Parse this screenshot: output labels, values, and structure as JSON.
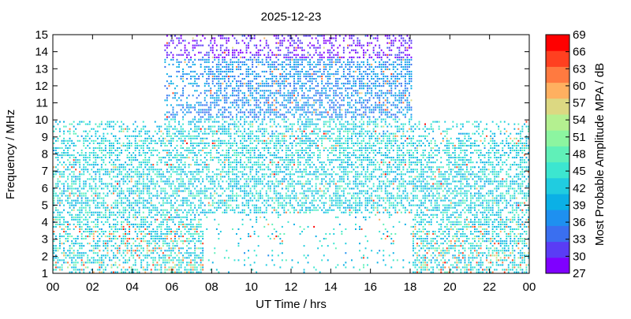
{
  "chart_data": {
    "type": "heatmap",
    "title": "2025-12-23",
    "xlabel": "UT Time / hrs",
    "ylabel": "Frequency / MHz",
    "xlim": [
      0,
      24
    ],
    "ylim": [
      1,
      15
    ],
    "x_ticks": [
      "00",
      "02",
      "04",
      "06",
      "08",
      "10",
      "12",
      "14",
      "16",
      "18",
      "20",
      "22",
      "00"
    ],
    "y_ticks": [
      "1",
      "2",
      "3",
      "4",
      "5",
      "6",
      "7",
      "8",
      "9",
      "10",
      "11",
      "12",
      "13",
      "14",
      "15"
    ],
    "colorbar": {
      "label": "Most Probable Amplitude MPA / dB",
      "range": [
        27,
        69
      ],
      "ticks": [
        "27",
        "30",
        "33",
        "36",
        "39",
        "42",
        "45",
        "48",
        "51",
        "54",
        "57",
        "60",
        "63",
        "66",
        "69"
      ],
      "colors": [
        "#7f00ff",
        "#5a3cf5",
        "#3a6ff0",
        "#1e90f0",
        "#0bb0e6",
        "#20cce0",
        "#3ce6d0",
        "#60f0b8",
        "#8cf5a0",
        "#b4f090",
        "#dcd882",
        "#ffb060",
        "#ff7a40",
        "#ff4020",
        "#ff0000"
      ]
    },
    "coverage": [
      {
        "from_hr": 0.0,
        "to_hr": 5.5,
        "top_freq_mhz": 9.9
      },
      {
        "from_hr": 5.5,
        "to_hr": 7.5,
        "top_freq_mhz": 15.0
      },
      {
        "from_hr": 7.5,
        "to_hr": 18.0,
        "top_freq_mhz": 15.0
      },
      {
        "from_hr": 18.0,
        "to_hr": 24.0,
        "top_freq_mhz": 9.9
      }
    ],
    "grid": false
  }
}
